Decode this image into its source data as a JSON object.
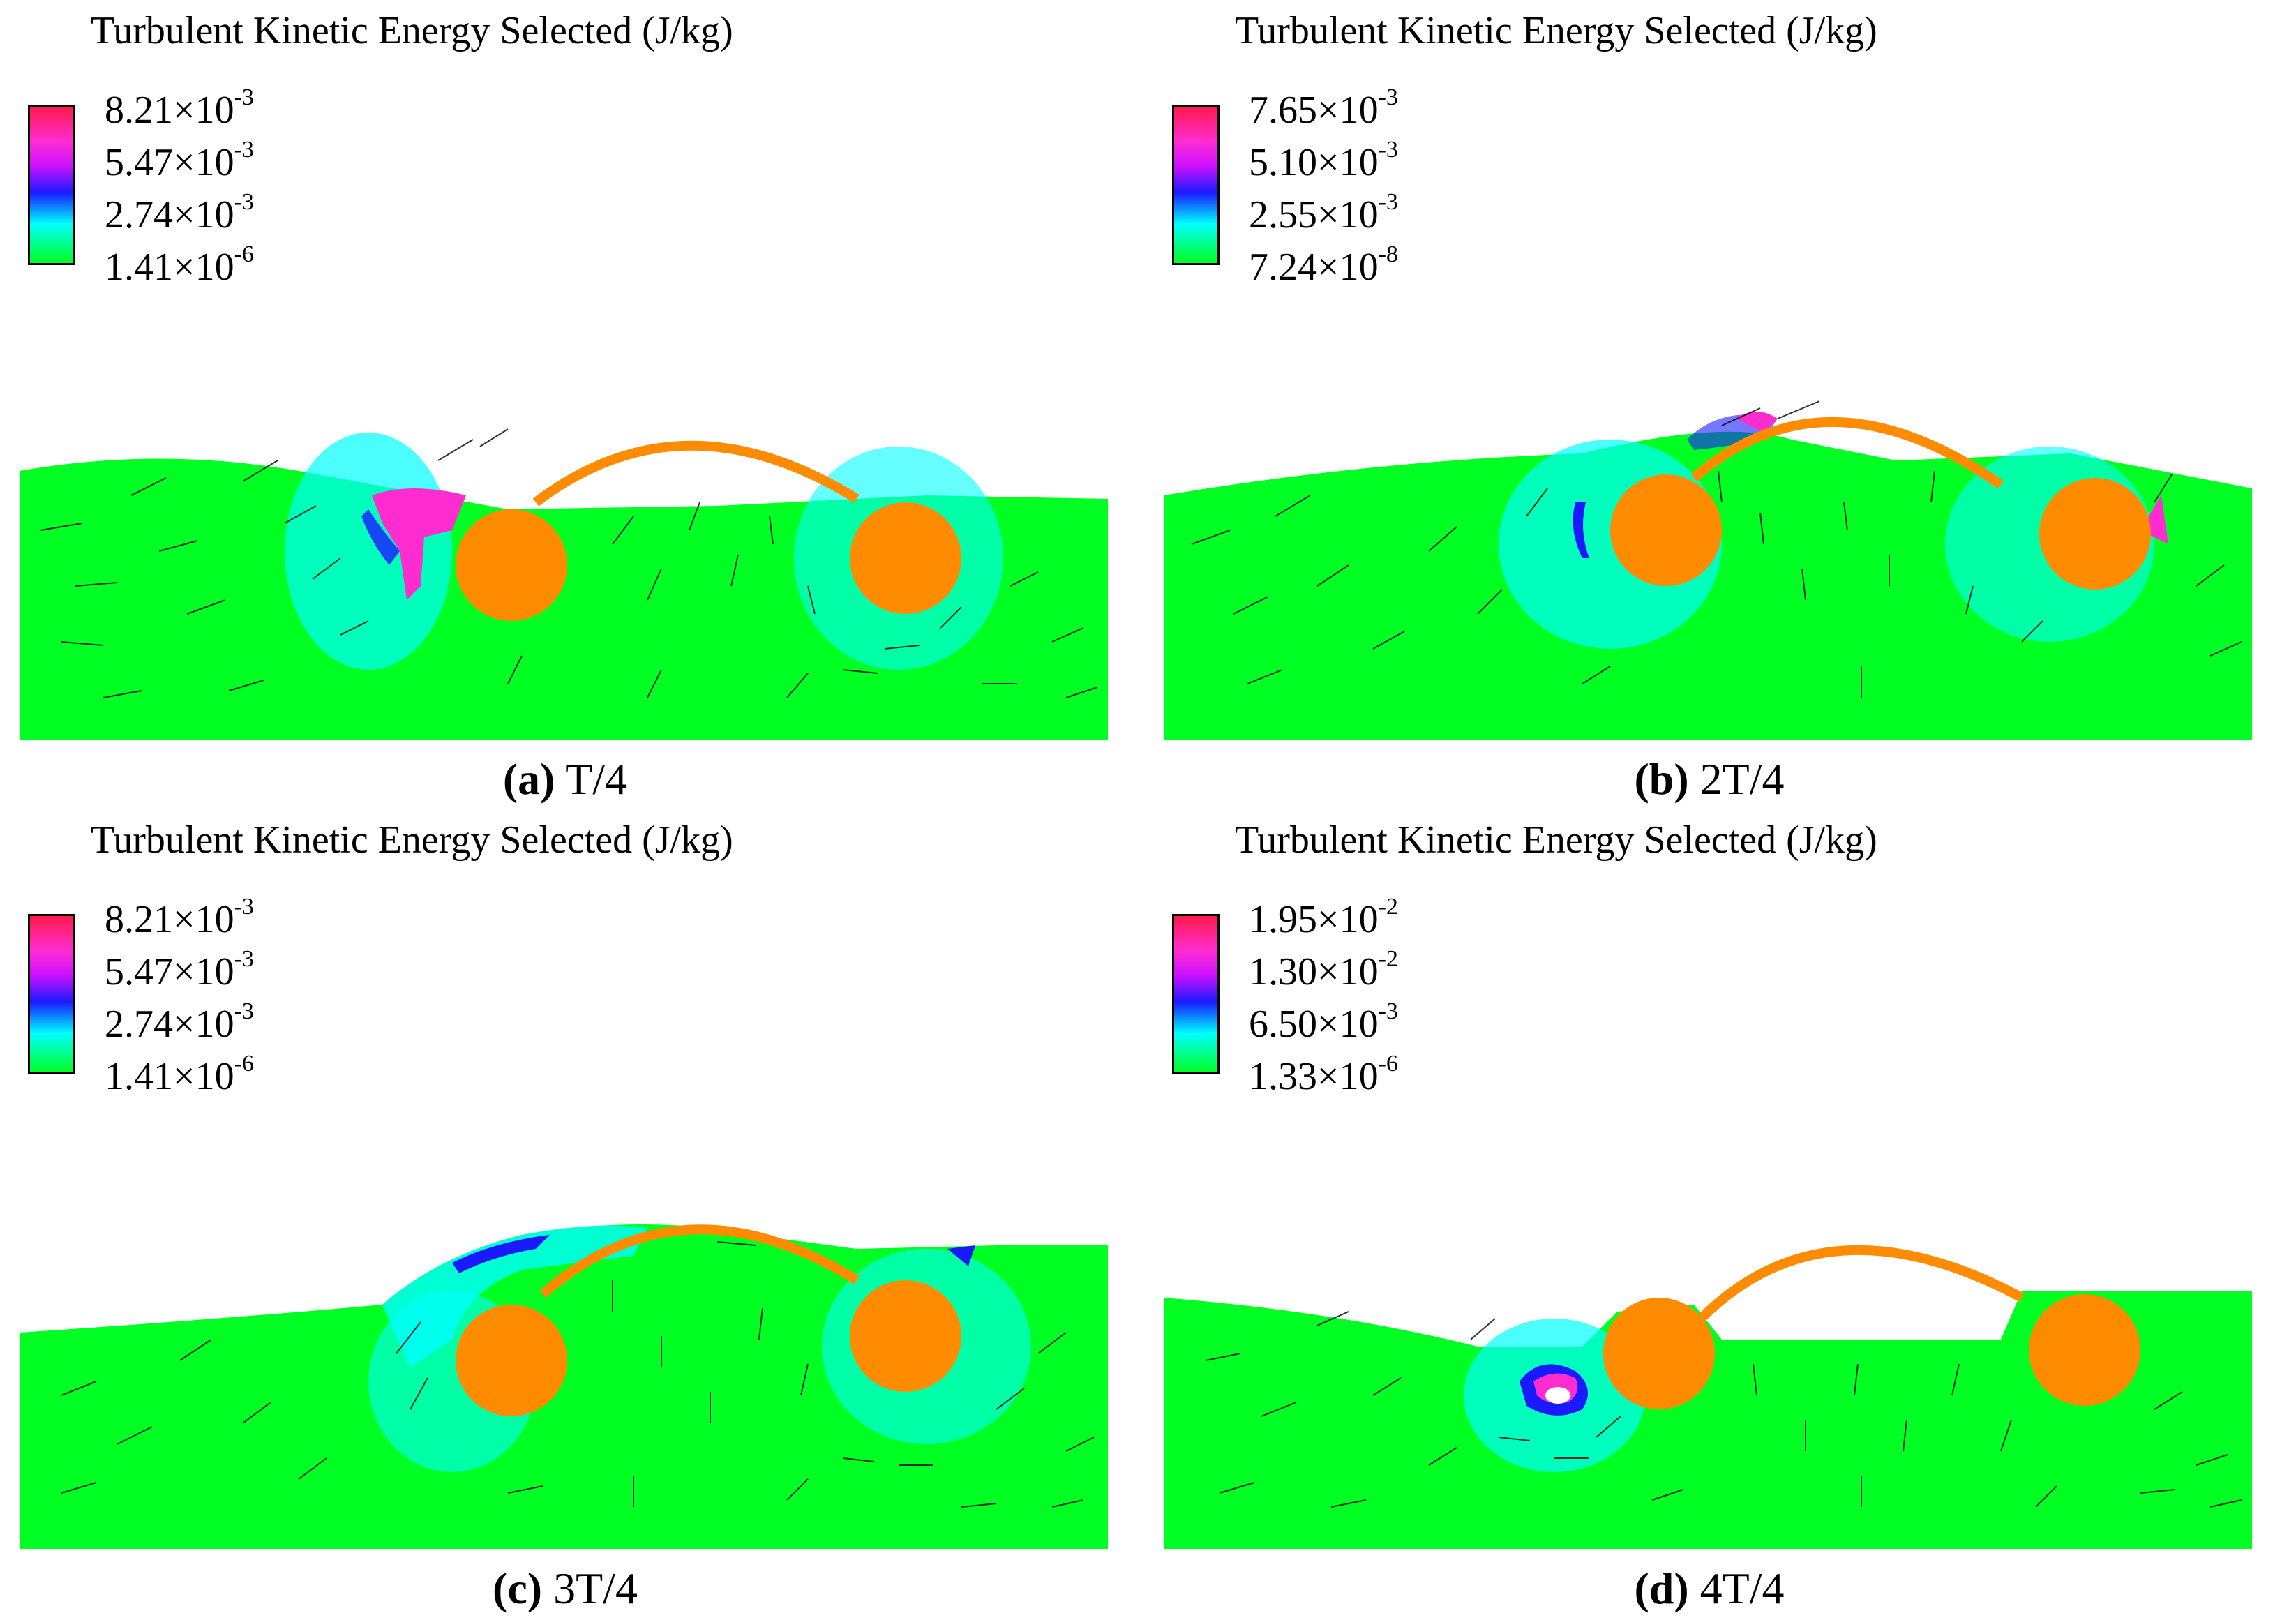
{
  "panels": [
    {
      "title": "Turbulent Kinetic Energy Selected (J/kg)",
      "ticks": [
        {
          "mant": "8.21",
          "exp": "-3"
        },
        {
          "mant": "5.47",
          "exp": "-3"
        },
        {
          "mant": "2.74",
          "exp": "-3"
        },
        {
          "mant": "1.41",
          "exp": "-6"
        }
      ],
      "caption": {
        "letter": "(a)",
        "label": " T/4"
      }
    },
    {
      "title": "Turbulent Kinetic Energy Selected (J/kg)",
      "ticks": [
        {
          "mant": "7.65",
          "exp": "-3"
        },
        {
          "mant": "5.10",
          "exp": "-3"
        },
        {
          "mant": "2.55",
          "exp": "-3"
        },
        {
          "mant": "7.24",
          "exp": "-8"
        }
      ],
      "caption": {
        "letter": "(b)",
        "label": " 2T/4"
      }
    },
    {
      "title": "Turbulent Kinetic Energy Selected (J/kg)",
      "ticks": [
        {
          "mant": "8.21",
          "exp": "-3"
        },
        {
          "mant": "5.47",
          "exp": "-3"
        },
        {
          "mant": "2.74",
          "exp": "-3"
        },
        {
          "mant": "1.41",
          "exp": "-6"
        }
      ],
      "caption": {
        "letter": "(c)",
        "label": " 3T/4"
      }
    },
    {
      "title": "Turbulent Kinetic Energy Selected (J/kg)",
      "ticks": [
        {
          "mant": "1.95",
          "exp": "-2"
        },
        {
          "mant": "1.30",
          "exp": "-2"
        },
        {
          "mant": "6.50",
          "exp": "-3"
        },
        {
          "mant": "1.33",
          "exp": "-6"
        }
      ],
      "caption": {
        "letter": "(d)",
        "label": " 4T/4"
      }
    }
  ],
  "colors": {
    "field": "#00ff22",
    "body": "#ff8c00",
    "low_turbulence": "#00ffff",
    "mid_turbulence": "#1a1aff",
    "high_turbulence": "#ff2dd0",
    "vectors": "#000000"
  }
}
